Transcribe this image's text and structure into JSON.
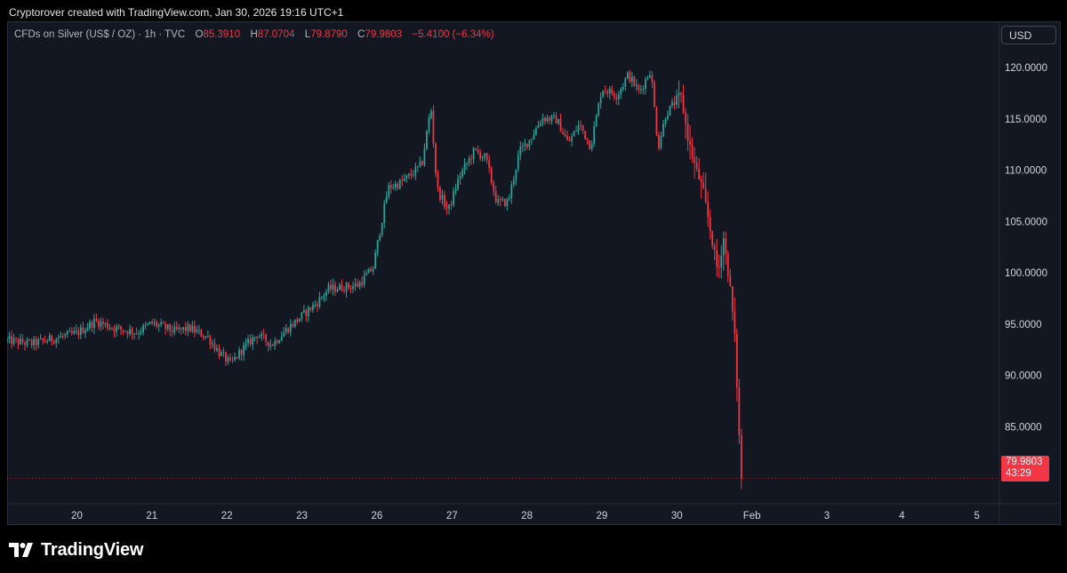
{
  "caption": "Cryptorover created with TradingView.com, Jan 30, 2026 19:16 UTC+1",
  "legend": {
    "symbol": "CFDs on Silver (US$ / OZ) · 1h · TVC",
    "o_label": "O",
    "o_value": "85.3910",
    "h_label": "H",
    "h_value": "87.0704",
    "l_label": "L",
    "l_value": "79.8790",
    "c_label": "C",
    "c_value": "79.9803",
    "change": "−5.4100 (−6.34%)"
  },
  "currency": "USD",
  "last_price": {
    "price": "79.9803",
    "countdown": "43:29"
  },
  "brand": {
    "name": "TradingView"
  },
  "colors": {
    "background": "#131722",
    "up": "#26a69a",
    "down": "#f23645",
    "text": "#d1d4dc",
    "axis_line": "#2a2e39"
  },
  "chart_data": {
    "type": "candlestick",
    "symbol": "CFDs on Silver (US$ / OZ)",
    "interval": "1h",
    "ylim": [
      77.5,
      124.5
    ],
    "y_ticks": [
      "85.0000",
      "90.0000",
      "95.0000",
      "100.0000",
      "105.0000",
      "110.0000",
      "115.0000",
      "120.0000"
    ],
    "y_tick_values": [
      85,
      90,
      95,
      100,
      105,
      110,
      115,
      120
    ],
    "x_ticks": [
      "20",
      "21",
      "22",
      "23",
      "26",
      "27",
      "28",
      "29",
      "30",
      "Feb",
      "3",
      "4",
      "5"
    ],
    "x_tick_index": [
      0,
      1,
      2,
      3,
      4,
      5,
      6,
      7,
      8,
      9,
      10,
      11,
      12
    ],
    "x_range": [
      -0.93,
      12.3
    ],
    "path_anchors": [
      [
        -0.93,
        93.4
      ],
      [
        -0.6,
        93.1
      ],
      [
        -0.3,
        93.6
      ],
      [
        0.0,
        94.1
      ],
      [
        0.25,
        95.3
      ],
      [
        0.5,
        94.6
      ],
      [
        0.8,
        94.2
      ],
      [
        1.0,
        95.1
      ],
      [
        1.3,
        94.3
      ],
      [
        1.5,
        94.6
      ],
      [
        1.75,
        93.7
      ],
      [
        1.9,
        92.2
      ],
      [
        2.05,
        91.1
      ],
      [
        2.2,
        92.5
      ],
      [
        2.4,
        94.0
      ],
      [
        2.6,
        93.0
      ],
      [
        2.8,
        94.5
      ],
      [
        3.0,
        95.8
      ],
      [
        3.2,
        97.1
      ],
      [
        3.35,
        98.4
      ],
      [
        3.55,
        98.6
      ],
      [
        3.75,
        98.8
      ],
      [
        3.95,
        100.5
      ],
      [
        4.05,
        104.5
      ],
      [
        4.15,
        108.3
      ],
      [
        4.3,
        108.7
      ],
      [
        4.45,
        109.5
      ],
      [
        4.6,
        110.6
      ],
      [
        4.72,
        116.2
      ],
      [
        4.8,
        108.2
      ],
      [
        4.95,
        106.0
      ],
      [
        5.1,
        109.4
      ],
      [
        5.3,
        111.9
      ],
      [
        5.45,
        111.2
      ],
      [
        5.6,
        106.8
      ],
      [
        5.75,
        106.9
      ],
      [
        5.9,
        111.8
      ],
      [
        6.05,
        113.1
      ],
      [
        6.2,
        115.1
      ],
      [
        6.4,
        114.9
      ],
      [
        6.55,
        112.6
      ],
      [
        6.7,
        114.5
      ],
      [
        6.85,
        112.3
      ],
      [
        7.0,
        118.0
      ],
      [
        7.2,
        117.3
      ],
      [
        7.35,
        119.3
      ],
      [
        7.5,
        117.6
      ],
      [
        7.65,
        119.8
      ],
      [
        7.75,
        112.2
      ],
      [
        7.85,
        115.4
      ],
      [
        7.95,
        116.4
      ],
      [
        8.05,
        117.4
      ],
      [
        8.15,
        113.0
      ],
      [
        8.25,
        110.2
      ],
      [
        8.35,
        108.0
      ],
      [
        8.45,
        103.9
      ],
      [
        8.55,
        99.9
      ],
      [
        8.62,
        103.5
      ],
      [
        8.72,
        97.9
      ],
      [
        8.78,
        92.9
      ],
      [
        8.82,
        85.4
      ],
      [
        8.86,
        79.98
      ]
    ],
    "last_close": 79.9803
  }
}
